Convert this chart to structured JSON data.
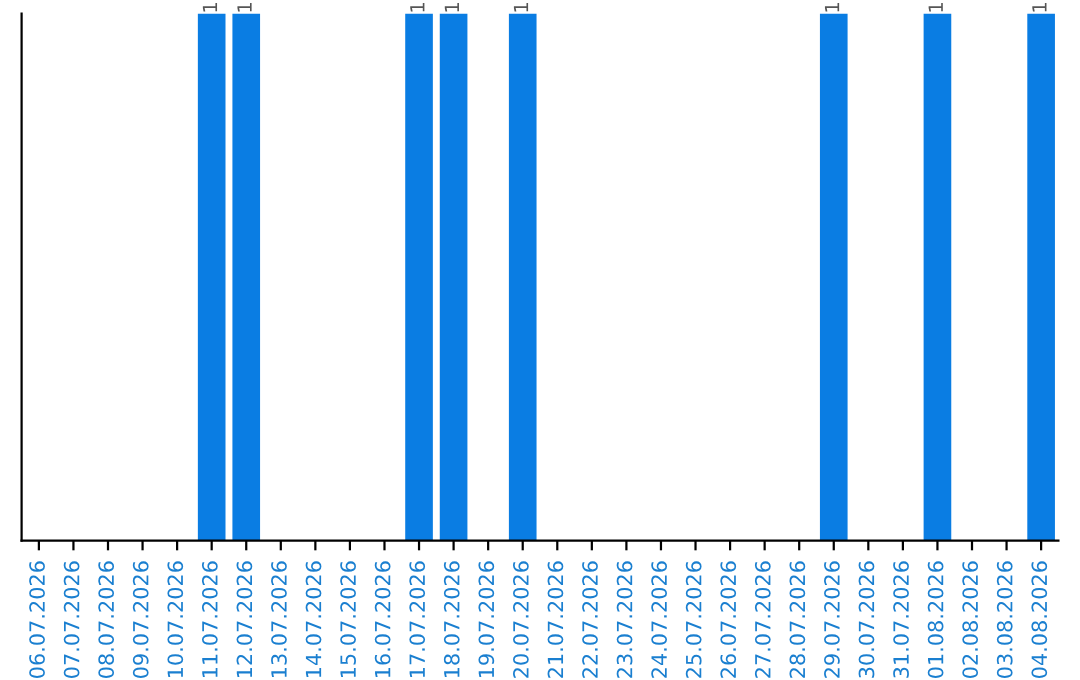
{
  "chart_data": {
    "type": "bar",
    "categories": [
      "06.07.2026",
      "07.07.2026",
      "08.07.2026",
      "09.07.2026",
      "10.07.2026",
      "11.07.2026",
      "12.07.2026",
      "13.07.2026",
      "14.07.2026",
      "15.07.2026",
      "16.07.2026",
      "17.07.2026",
      "18.07.2026",
      "19.07.2026",
      "20.07.2026",
      "21.07.2026",
      "22.07.2026",
      "23.07.2026",
      "24.07.2026",
      "25.07.2026",
      "26.07.2026",
      "27.07.2026",
      "28.07.2026",
      "29.07.2026",
      "30.07.2026",
      "31.07.2026",
      "01.08.2026",
      "02.08.2026",
      "03.08.2026",
      "04.08.2026"
    ],
    "values": [
      0,
      0,
      0,
      0,
      0,
      1,
      1,
      0,
      0,
      0,
      0,
      1,
      1,
      0,
      1,
      0,
      0,
      0,
      0,
      0,
      0,
      0,
      0,
      1,
      0,
      0,
      1,
      0,
      0,
      1
    ],
    "value_labels": [
      null,
      null,
      null,
      null,
      null,
      "1",
      "1",
      null,
      null,
      null,
      null,
      "1",
      "1",
      null,
      "1",
      null,
      null,
      null,
      null,
      null,
      null,
      null,
      null,
      "1",
      null,
      null,
      "1",
      null,
      null,
      "1"
    ],
    "color": "#0a7de3",
    "grid": false,
    "legend": false
  }
}
